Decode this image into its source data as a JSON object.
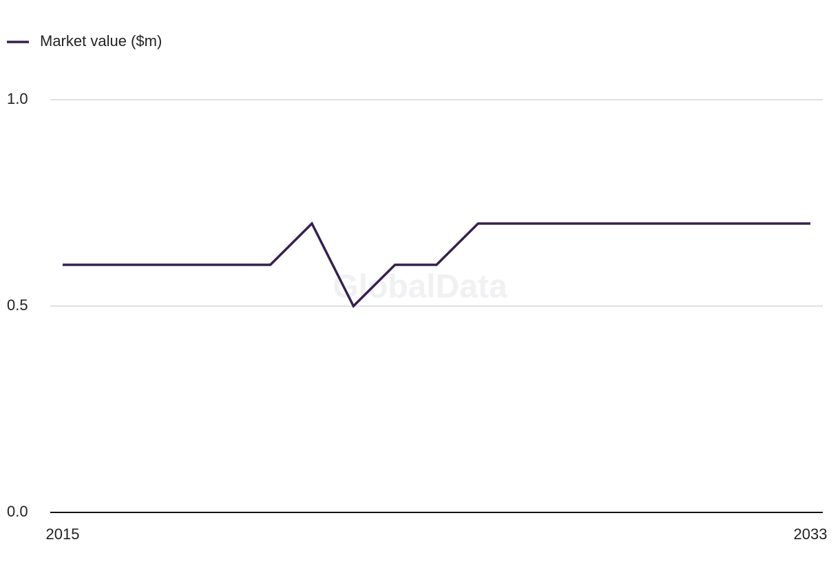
{
  "chart_data": {
    "type": "line",
    "legend": "top-left",
    "watermark": "GlobalData",
    "x": [
      2015,
      2016,
      2017,
      2018,
      2019,
      2020,
      2021,
      2022,
      2023,
      2024,
      2025,
      2026,
      2027,
      2028,
      2029,
      2030,
      2031,
      2032,
      2033
    ],
    "xlim": [
      2015,
      2033
    ],
    "xticks": [
      2015,
      2033
    ],
    "ylim": [
      0,
      1
    ],
    "yticks": [
      {
        "value": 0,
        "label": "0.0"
      },
      {
        "value": 0.5,
        "label": "0.5"
      },
      {
        "value": 1,
        "label": "1.0"
      }
    ],
    "grid": true,
    "series": [
      {
        "name": "Market value ($m)",
        "color": "#35204f",
        "values": [
          0.6,
          0.6,
          0.6,
          0.6,
          0.6,
          0.6,
          0.7,
          0.5,
          0.6,
          0.6,
          0.7,
          0.7,
          0.7,
          0.7,
          0.7,
          0.7,
          0.7,
          0.7,
          0.7
        ]
      }
    ]
  }
}
